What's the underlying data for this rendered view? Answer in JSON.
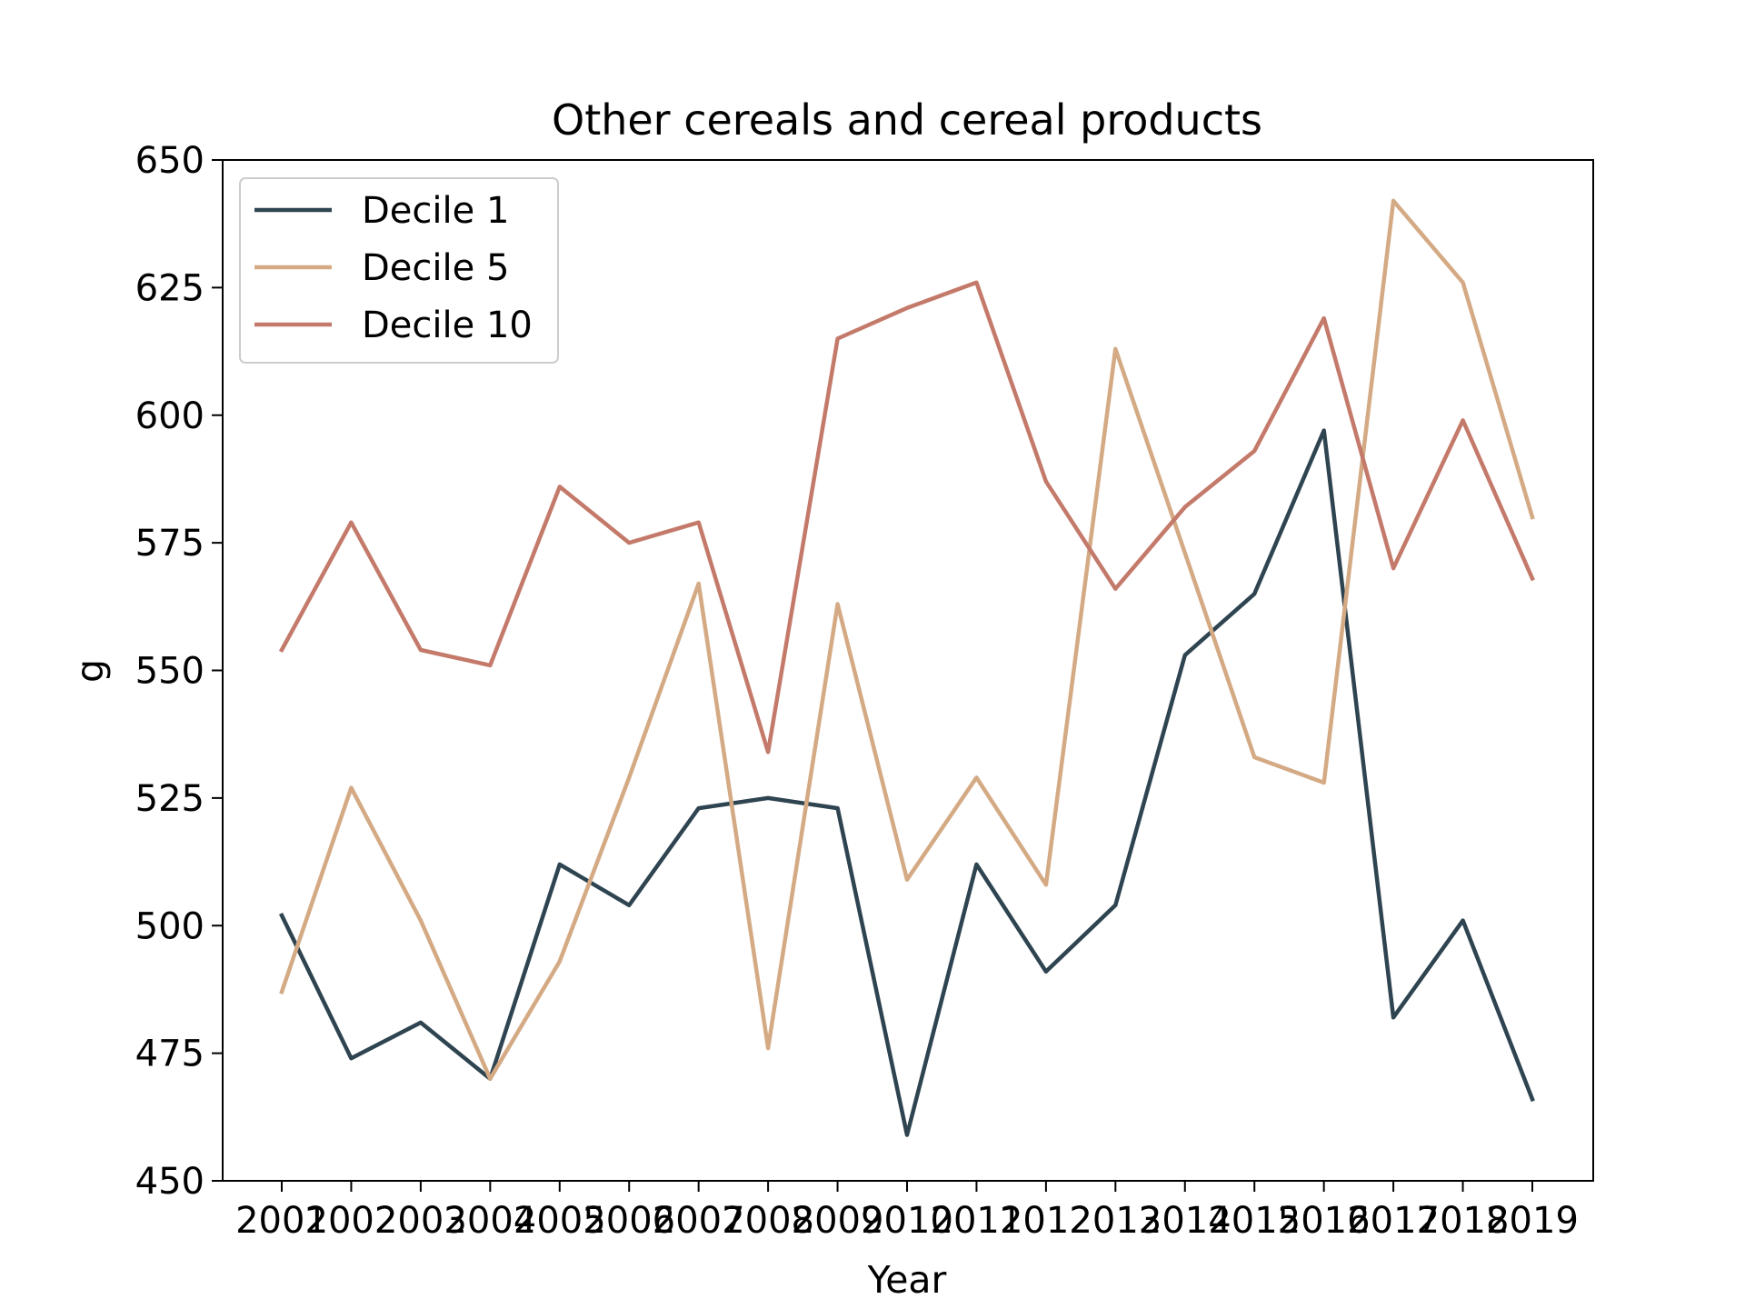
{
  "chart_data": {
    "type": "line",
    "title": "Other cereals and cereal products",
    "xlabel": "Year",
    "ylabel": "g",
    "x": [
      "2001",
      "2002",
      "2003",
      "2004",
      "2005",
      "2006",
      "2007",
      "2008",
      "2009",
      "2010",
      "2011",
      "2012",
      "2013",
      "2014",
      "2015",
      "2016",
      "2017",
      "2018",
      "2019"
    ],
    "ylim": [
      450,
      650
    ],
    "yticks": [
      450,
      475,
      500,
      525,
      550,
      575,
      600,
      625,
      650
    ],
    "grid": false,
    "legend_position": "upper-left",
    "series": [
      {
        "name": "Decile 1",
        "color": "#2e4450",
        "values": [
          502,
          474,
          481,
          470,
          512,
          504,
          523,
          525,
          523,
          459,
          512,
          491,
          504,
          553,
          565,
          597,
          482,
          501,
          466
        ]
      },
      {
        "name": "Decile 5",
        "color": "#d4aa84",
        "values": [
          487,
          527,
          501,
          470,
          493,
          529,
          567,
          476,
          563,
          509,
          529,
          508,
          613,
          573,
          533,
          528,
          642,
          626,
          580
        ]
      },
      {
        "name": "Decile 10",
        "color": "#c47a6a",
        "values": [
          554,
          579,
          554,
          551,
          586,
          575,
          579,
          534,
          615,
          621,
          626,
          587,
          566,
          582,
          593,
          619,
          570,
          599,
          568
        ]
      }
    ]
  }
}
